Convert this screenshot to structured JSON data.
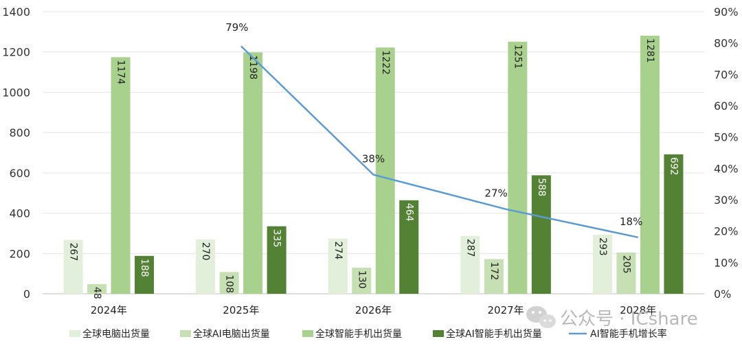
{
  "chart_data": {
    "type": "bar",
    "categories": [
      "2024年",
      "2025年",
      "2026年",
      "2027年",
      "2028年"
    ],
    "series": [
      {
        "name": "全球电脑出货量",
        "kind": "bar",
        "color": "#e2efda",
        "values": [
          267,
          270,
          274,
          287,
          293
        ]
      },
      {
        "name": "全球AI电脑出货量",
        "kind": "bar",
        "color": "#c6e0b4",
        "values": [
          48,
          108,
          130,
          172,
          205
        ]
      },
      {
        "name": "全球智能手机出货量",
        "kind": "bar",
        "color": "#a9d18e",
        "values": [
          1174,
          1198,
          1222,
          1251,
          1281
        ]
      },
      {
        "name": "全球AI智能手机出货量",
        "kind": "bar",
        "color": "#548235",
        "values": [
          188,
          335,
          464,
          588,
          692
        ]
      },
      {
        "name": "AI智能手机增长率",
        "kind": "line",
        "axis": "right",
        "color": "#5b9bd5",
        "x": [
          "2025年",
          "2026年",
          "2027年",
          "2028年"
        ],
        "values": [
          79,
          38,
          27,
          18
        ],
        "labels": [
          "79%",
          "38%",
          "27%",
          "18%"
        ]
      }
    ],
    "ylim": [
      0,
      1400
    ],
    "yticks": [
      "0",
      "200",
      "400",
      "600",
      "800",
      "1000",
      "1200",
      "1400"
    ],
    "y2lim": [
      0,
      90
    ],
    "y2ticks": [
      "0%",
      "10%",
      "20%",
      "30%",
      "40%",
      "50%",
      "60%",
      "70%",
      "80%",
      "90%"
    ],
    "grid": true,
    "legend_position": "bottom",
    "title": "",
    "xlabel": "",
    "ylabel": ""
  },
  "watermark": {
    "text": "公众号 · ICshare",
    "icon": "wechat-icon"
  }
}
